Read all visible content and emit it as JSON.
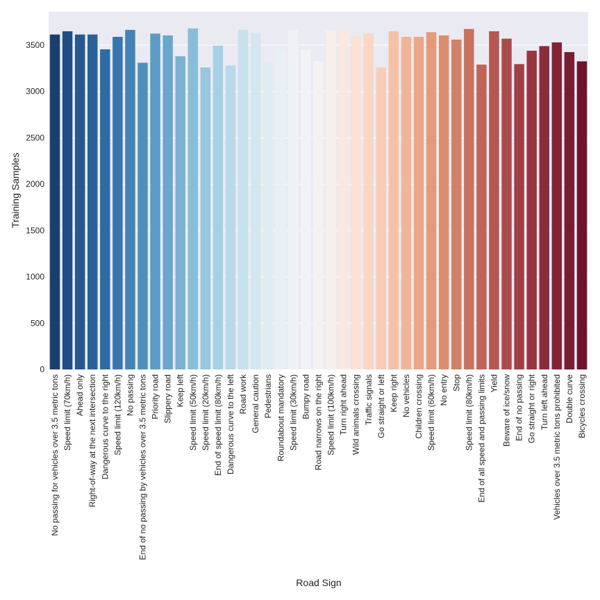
{
  "chart_data": {
    "type": "bar",
    "xlabel": "Road Sign",
    "ylabel": "Training Samples",
    "ylim": [
      0,
      3860
    ],
    "yticks": [
      0,
      500,
      1000,
      1500,
      2000,
      2500,
      3000,
      3500
    ],
    "grid": true,
    "palette": "RdBu_r",
    "categories": [
      "No passing for vehicles over 3.5 metric tons",
      "Speed limit (70km/h)",
      "Ahead only",
      "Right-of-way at the next intersection",
      "Dangerous curve to the right",
      "Speed limit (120km/h)",
      "No passing",
      "End of no passing by vehicles over 3.5 metric tons",
      "Priority road",
      "Slippery road",
      "Keep left",
      "Speed limit (50km/h)",
      "Speed limit (20km/h)",
      "End of speed limit (80km/h)",
      "Dangerous curve to the left",
      "Road work",
      "General caution",
      "Pedestrians",
      "Roundabout mandatory",
      "Speed limit (30km/h)",
      "Bumpy road",
      "Road narrows on the right",
      "Speed limit (100km/h)",
      "Turn right ahead",
      "Wild animals crossing",
      "Traffic signals",
      "Go straight or left",
      "Keep right",
      "No vehicles",
      "Children crossing",
      "Speed limit (60km/h)",
      "No entry",
      "Stop",
      "Speed limit (80km/h)",
      "End of all speed and passing limits",
      "Yield",
      "Beware of ice/snow",
      "End of no passing",
      "Go straight or right",
      "Turn left ahead",
      "Vehicles over 3.5 metric tons prohibited",
      "Double curve",
      "Bicycles crossing"
    ],
    "values": [
      3615,
      3650,
      3615,
      3615,
      3455,
      3590,
      3665,
      3310,
      3625,
      3605,
      3380,
      3680,
      3260,
      3495,
      3280,
      3665,
      3635,
      3315,
      3460,
      3665,
      3450,
      3325,
      3660,
      3665,
      3600,
      3625,
      3260,
      3650,
      3590,
      3590,
      3640,
      3605,
      3560,
      3675,
      3290,
      3650,
      3570,
      3295,
      3440,
      3490,
      3530,
      3425,
      3325
    ],
    "colors": [
      "#1b3f6c",
      "#1f4d85",
      "#25588f",
      "#2a6199",
      "#2f6ba3",
      "#3776ad",
      "#4383b6",
      "#4f8fbe",
      "#5c9bc5",
      "#6aa7cd",
      "#79b2d4",
      "#88bdda",
      "#98c7df",
      "#a8d0e4",
      "#b8d9e9",
      "#c7e1ed",
      "#d4e7f0",
      "#dfecf3",
      "#e8f0f5",
      "#eef2f6",
      "#f2f3f5",
      "#f5f3f2",
      "#f8eeea",
      "#fae8e0",
      "#fbe0d3",
      "#fad6c4",
      "#f9cdb5",
      "#f6c1a5",
      "#f2b496",
      "#eca786",
      "#e59a7a",
      "#dd8d6f",
      "#d48066",
      "#c9725f",
      "#bf6558",
      "#b45851",
      "#aa4c4b",
      "#a04045",
      "#963640",
      "#8c2c3b",
      "#822436",
      "#781c31",
      "#6e142c"
    ]
  }
}
